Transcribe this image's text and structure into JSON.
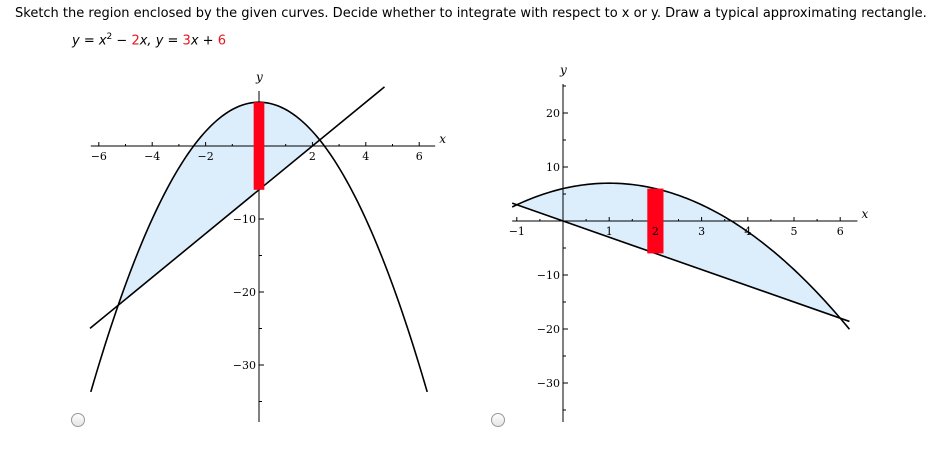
{
  "question": {
    "text": "Sketch the region enclosed by the given curves. Decide whether to integrate with respect to x or y. Draw a typical approximating rectangle.",
    "eq1_lhs": "y = x",
    "eq1_exp": "2",
    "eq1_mid": " − ",
    "eq1_coef": "2",
    "eq1_var": "x,  y = ",
    "eq2_coef": "3",
    "eq2_mid": "x + ",
    "eq2_const": "6"
  },
  "colors": {
    "fill": "#dceefc",
    "rect": "#ff0018",
    "curve": "#000000",
    "highlight": "#e8141b"
  },
  "options": [
    {
      "name": "option-a",
      "selected": false
    },
    {
      "name": "option-b",
      "selected": false
    }
  ],
  "chart_data": [
    {
      "type": "line",
      "xlabel": "x",
      "ylabel": "y",
      "xlim": [
        -6.3,
        6.3
      ],
      "ylim": [
        -36,
        8
      ],
      "x_ticks": [
        "-6",
        "-4",
        "-2",
        "2",
        "4",
        "6"
      ],
      "y_ticks": [
        "-10",
        "-20",
        "-30"
      ],
      "curves": [
        "parabola y = 6 - x^2",
        "line y = 3x - 6"
      ],
      "rectangle": {
        "orientation": "vertical",
        "x": 0
      }
    },
    {
      "type": "line",
      "xlabel": "x",
      "ylabel": "y",
      "xlim": [
        -1.1,
        6.2
      ],
      "ylim": [
        -36,
        25
      ],
      "x_ticks": [
        "-1",
        "1",
        "2",
        "3",
        "4",
        "5",
        "6"
      ],
      "y_ticks": [
        "20",
        "10",
        "-10",
        "-20",
        "-30"
      ],
      "curves": [
        "parabola y = -x^2 + 2x + 6",
        "line y = -3x"
      ],
      "rectangle": {
        "orientation": "vertical",
        "x": 2
      }
    }
  ]
}
